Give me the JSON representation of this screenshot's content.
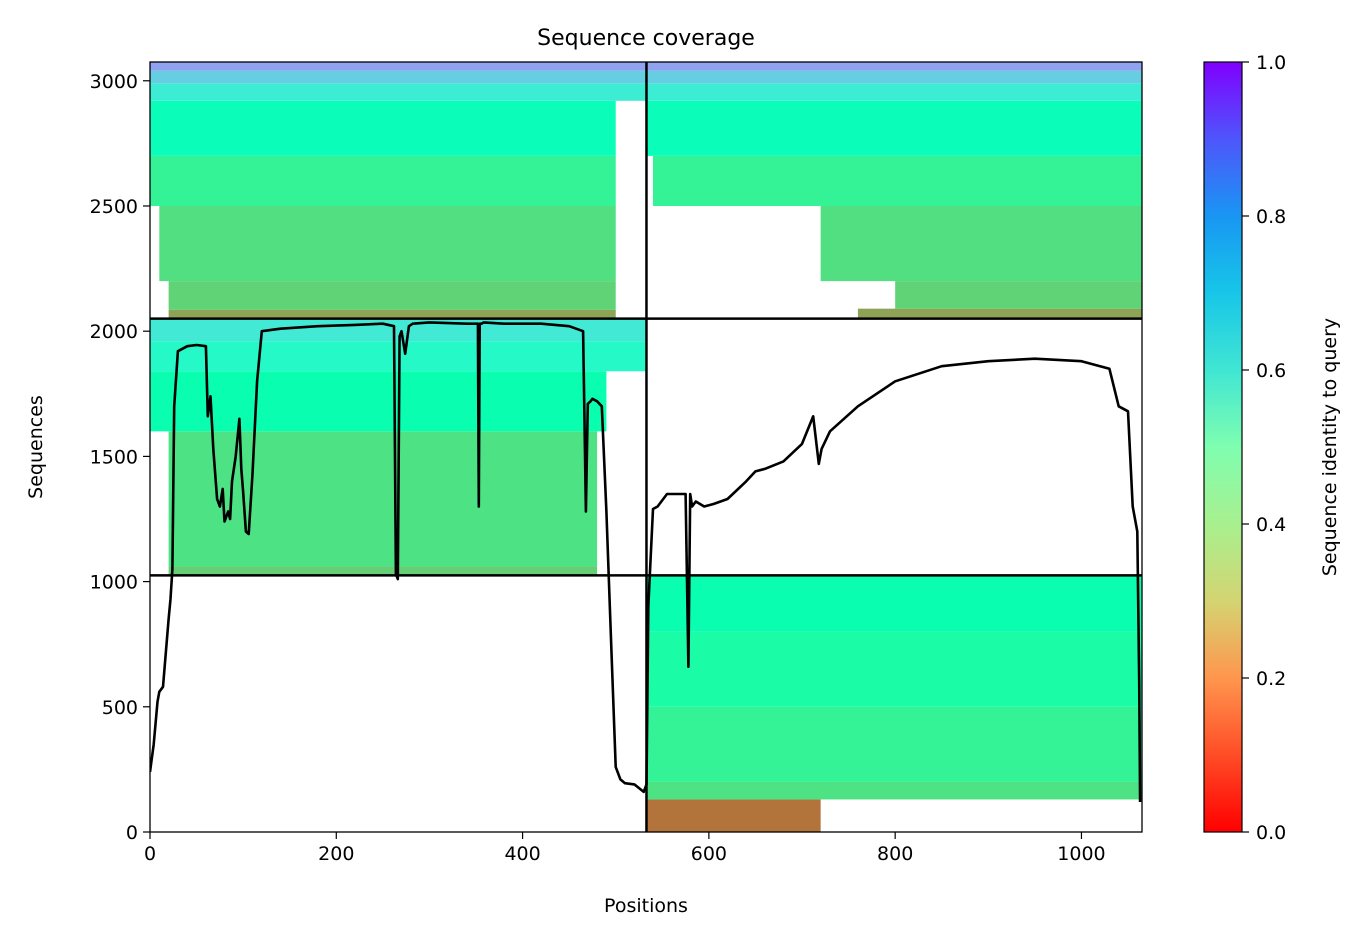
{
  "chart_data": {
    "type": "heatmap",
    "title": "Sequence coverage",
    "xlabel": "Positions",
    "ylabel": "Sequences",
    "xlim": [
      0,
      1065
    ],
    "ylim": [
      0,
      3075
    ],
    "x_ticks": [
      0,
      200,
      400,
      600,
      800,
      1000
    ],
    "y_ticks": [
      0,
      500,
      1000,
      1500,
      2000,
      2500,
      3000
    ],
    "grid": false,
    "colormap": "rainbow_r",
    "colorbar": {
      "label": "Sequence identity to query",
      "range": [
        0,
        1
      ],
      "ticks": [
        "0.0",
        "0.2",
        "0.4",
        "0.6",
        "0.8",
        "1.0"
      ]
    },
    "domain_boundaries": {
      "x": [
        533
      ],
      "y": [
        1025,
        2050
      ]
    },
    "blocks": [
      {
        "name": "top-left",
        "x0": 0,
        "x1": 533,
        "y0": 2050,
        "y1": 3075,
        "bands": [
          {
            "y0": 2050,
            "y1": 2085,
            "identity": 0.22,
            "x0": 20,
            "x1": 500
          },
          {
            "y0": 2085,
            "y1": 2200,
            "identity": 0.31,
            "x0": 20,
            "x1": 500
          },
          {
            "y0": 2200,
            "y1": 2500,
            "identity": 0.34,
            "x0": 10,
            "x1": 500
          },
          {
            "y0": 2500,
            "y1": 2700,
            "identity": 0.4,
            "x0": 0,
            "x1": 500
          },
          {
            "y0": 2700,
            "y1": 2920,
            "identity": 0.52,
            "x0": 0,
            "x1": 500
          },
          {
            "y0": 2920,
            "y1": 2990,
            "identity": 0.62,
            "x0": 0,
            "x1": 533
          },
          {
            "y0": 2990,
            "y1": 3040,
            "identity": 0.7,
            "x0": 0,
            "x1": 533
          },
          {
            "y0": 3040,
            "y1": 3075,
            "identity": 0.78,
            "x0": 0,
            "x1": 533
          }
        ]
      },
      {
        "name": "top-right",
        "x0": 533,
        "x1": 1065,
        "y0": 2050,
        "y1": 3075,
        "bands": [
          {
            "y0": 2050,
            "y1": 2090,
            "identity": 0.22,
            "x0": 760,
            "x1": 1065
          },
          {
            "y0": 2090,
            "y1": 2200,
            "identity": 0.31,
            "x0": 800,
            "x1": 1065
          },
          {
            "y0": 2200,
            "y1": 2500,
            "identity": 0.34,
            "x0": 720,
            "x1": 1065
          },
          {
            "y0": 2500,
            "y1": 2700,
            "identity": 0.4,
            "x0": 540,
            "x1": 1065
          },
          {
            "y0": 2700,
            "y1": 2920,
            "identity": 0.52,
            "x0": 533,
            "x1": 1065
          },
          {
            "y0": 2920,
            "y1": 2990,
            "identity": 0.62,
            "x0": 533,
            "x1": 1065
          },
          {
            "y0": 2990,
            "y1": 3040,
            "identity": 0.7,
            "x0": 533,
            "x1": 1065
          },
          {
            "y0": 3040,
            "y1": 3075,
            "identity": 0.78,
            "x0": 533,
            "x1": 1065
          }
        ]
      },
      {
        "name": "middle-left",
        "x0": 0,
        "x1": 533,
        "y0": 1025,
        "y1": 2050,
        "bands": [
          {
            "y0": 1025,
            "y1": 1060,
            "identity": 0.3,
            "x0": 20,
            "x1": 480
          },
          {
            "y0": 1060,
            "y1": 1600,
            "identity": 0.35,
            "x0": 20,
            "x1": 480
          },
          {
            "y0": 1600,
            "y1": 1840,
            "identity": 0.48,
            "x0": 0,
            "x1": 490
          },
          {
            "y0": 1840,
            "y1": 1960,
            "identity": 0.57,
            "x0": 0,
            "x1": 533
          },
          {
            "y0": 1960,
            "y1": 2050,
            "identity": 0.63,
            "x0": 0,
            "x1": 533
          }
        ]
      },
      {
        "name": "bottom-right",
        "x0": 533,
        "x1": 1065,
        "y0": 0,
        "y1": 1025,
        "bands": [
          {
            "y0": 0,
            "y1": 130,
            "identity": 0.15,
            "x0": 533,
            "x1": 720
          },
          {
            "y0": 130,
            "y1": 200,
            "identity": 0.35,
            "x0": 533,
            "x1": 1065
          },
          {
            "y0": 200,
            "y1": 500,
            "identity": 0.4,
            "x0": 533,
            "x1": 1065
          },
          {
            "y0": 500,
            "y1": 800,
            "identity": 0.45,
            "x0": 533,
            "x1": 1065
          },
          {
            "y0": 800,
            "y1": 1025,
            "identity": 0.48,
            "x0": 533,
            "x1": 1065
          }
        ]
      }
    ],
    "coverage_line": {
      "color": "#000000",
      "x": [
        0,
        4,
        8,
        10,
        14,
        20,
        22,
        24,
        26,
        30,
        40,
        50,
        60,
        62,
        65,
        68,
        72,
        75,
        78,
        80,
        84,
        86,
        88,
        92,
        96,
        98,
        100,
        103,
        106,
        110,
        115,
        120,
        140,
        180,
        220,
        250,
        262,
        264,
        266,
        268,
        270,
        274,
        278,
        282,
        300,
        340,
        352,
        353,
        354,
        356,
        358,
        380,
        420,
        450,
        465,
        468,
        470,
        473,
        475,
        480,
        485,
        490,
        495,
        500,
        505,
        510,
        520,
        530,
        533,
        535,
        540,
        545,
        555,
        570,
        575,
        578,
        580,
        582,
        586,
        595,
        605,
        620,
        640,
        650,
        660,
        680,
        700,
        712,
        718,
        721,
        730,
        760,
        800,
        850,
        900,
        950,
        1000,
        1030,
        1040,
        1050,
        1055,
        1060,
        1062,
        1063
      ],
      "y": [
        240,
        350,
        520,
        560,
        580,
        850,
        930,
        1050,
        1700,
        1920,
        1940,
        1945,
        1940,
        1660,
        1740,
        1530,
        1330,
        1300,
        1370,
        1240,
        1280,
        1250,
        1400,
        1500,
        1650,
        1450,
        1360,
        1200,
        1190,
        1430,
        1800,
        2000,
        2010,
        2020,
        2025,
        2030,
        2020,
        1030,
        1010,
        1980,
        2000,
        1910,
        2020,
        2030,
        2035,
        2030,
        2030,
        1300,
        2030,
        2030,
        2035,
        2030,
        2030,
        2020,
        2000,
        1280,
        1710,
        1720,
        1730,
        1720,
        1700,
        1280,
        760,
        260,
        210,
        195,
        190,
        160,
        190,
        900,
        1290,
        1300,
        1350,
        1350,
        1350,
        660,
        1350,
        1300,
        1320,
        1300,
        1310,
        1330,
        1400,
        1440,
        1450,
        1480,
        1550,
        1660,
        1470,
        1530,
        1600,
        1700,
        1800,
        1860,
        1880,
        1890,
        1880,
        1850,
        1700,
        1680,
        1300,
        1200,
        600,
        120
      ]
    }
  }
}
